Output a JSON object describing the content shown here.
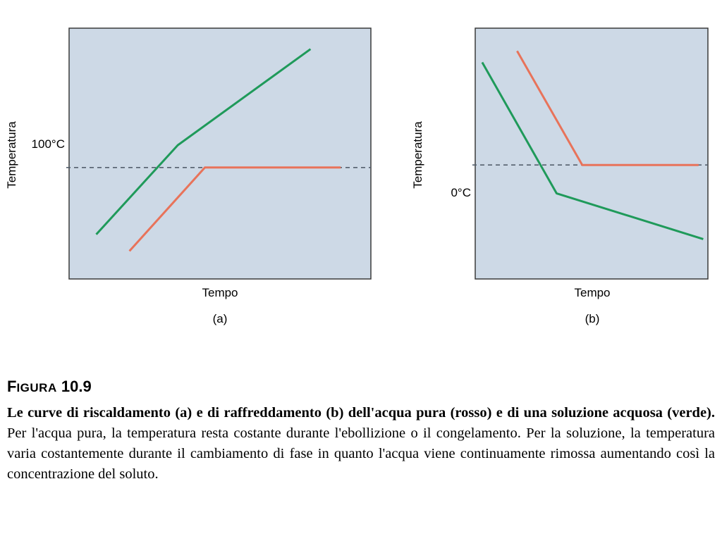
{
  "figure": {
    "title_lead": "F",
    "title_caps": "IGURA",
    "title_number": "10.9",
    "caption_bold": "Le curve di riscaldamento (a) e di raffreddamento (b) dell'acqua pura (rosso) e di una soluzione acquosa (verde).",
    "caption_text": " Per l'acqua pura, la temperatura resta costante durante l'ebollizione o il congelamento. Per la soluzione, la temperatura varia costantemente durante il cambiamento di fase in quanto l'acqua viene continuamente rimossa aumentando così la concentrazione del soluto."
  },
  "colors": {
    "plot_bg": "#cdd9e6",
    "pure_water": "#e8735a",
    "solution": "#1f9a5a",
    "reference_line": "#55606e"
  },
  "chart_data": [
    {
      "type": "line",
      "panel_label": "(a)",
      "xlabel": "Tempo",
      "ylabel": "Temperatura",
      "reference": {
        "value": 100,
        "label": "100°C",
        "style": "dashed"
      },
      "xlim": [
        0,
        10
      ],
      "ylim": [
        20,
        200
      ],
      "grid": false,
      "series": [
        {
          "key": "solution",
          "color": "#1f9a5a",
          "x": [
            0.9,
            3.6,
            8.0
          ],
          "y": [
            52,
            116,
            185
          ]
        },
        {
          "key": "pure_water",
          "color": "#e8735a",
          "x": [
            2.0,
            4.5,
            9.0
          ],
          "y": [
            40,
            100,
            100
          ]
        }
      ]
    },
    {
      "type": "line",
      "panel_label": "(b)",
      "xlabel": "Tempo",
      "ylabel": "Temperatura",
      "reference": {
        "value": 0,
        "label": "0°C",
        "style": "dashed"
      },
      "xlim": [
        0,
        10
      ],
      "ylim": [
        -100,
        120
      ],
      "grid": false,
      "series": [
        {
          "key": "solution",
          "color": "#1f9a5a",
          "x": [
            0.3,
            3.5,
            9.8
          ],
          "y": [
            90,
            -25,
            -65
          ]
        },
        {
          "key": "pure_water",
          "color": "#e8735a",
          "x": [
            1.8,
            4.6,
            9.6
          ],
          "y": [
            100,
            0,
            0
          ]
        }
      ]
    }
  ]
}
